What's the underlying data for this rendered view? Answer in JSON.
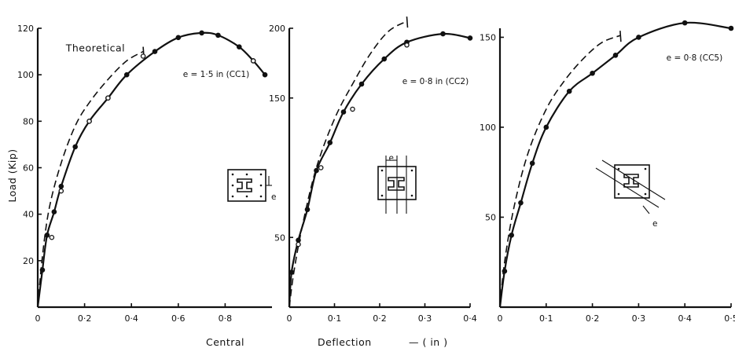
{
  "figure": {
    "x_caption": {
      "left": "Central",
      "middle": "Deflection",
      "right": "—  ( in )"
    }
  },
  "chart_data": [
    {
      "type": "line",
      "id": "CC1",
      "ylabel": "Load   (Kip)",
      "xlim": [
        0,
        1.0
      ],
      "ylim": [
        0,
        120
      ],
      "x_ticks": [
        0,
        0.2,
        0.4,
        0.6,
        0.8
      ],
      "x_tick_labels": [
        "0",
        "0·2",
        "0·4",
        "0·6",
        "0·8"
      ],
      "y_ticks": [
        20,
        40,
        60,
        80,
        100,
        120
      ],
      "y_tick_labels": [
        "20",
        "40",
        "60",
        "80",
        "100",
        "120"
      ],
      "annotations": [
        {
          "text": "Theoretical",
          "x": 0.12,
          "y": 110
        },
        {
          "text": "e = 1·5 in (CC1)",
          "x": 0.62,
          "y": 99
        }
      ],
      "series": [
        {
          "style": "dashed",
          "x": [
            0,
            0.02,
            0.05,
            0.1,
            0.16,
            0.22,
            0.3,
            0.38,
            0.45
          ],
          "y": [
            0,
            22,
            43,
            62,
            78,
            88,
            98,
            106,
            110
          ]
        },
        {
          "style": "solid",
          "markers": "filled",
          "x": [
            0,
            0.02,
            0.04,
            0.07,
            0.1,
            0.16,
            0.22,
            0.3,
            0.38,
            0.5,
            0.6,
            0.7,
            0.77,
            0.86,
            0.92,
            0.97
          ],
          "y": [
            0,
            16,
            31,
            41,
            52,
            69,
            80,
            90,
            100,
            110,
            116,
            118,
            117,
            112,
            106,
            100
          ]
        },
        {
          "style": "points",
          "markers": "open",
          "x": [
            0.06,
            0.1,
            0.22,
            0.3,
            0.45,
            0.92
          ],
          "y": [
            30,
            50,
            80,
            90,
            108,
            106
          ]
        }
      ]
    },
    {
      "type": "line",
      "id": "CC2",
      "xlim": [
        0,
        0.4
      ],
      "ylim": [
        0,
        200
      ],
      "x_ticks": [
        0,
        0.1,
        0.2,
        0.3,
        0.4
      ],
      "x_tick_labels": [
        "0",
        "0·1",
        "0·2",
        "0·3",
        "0·4"
      ],
      "y_ticks": [
        50,
        150,
        200
      ],
      "y_tick_labels": [
        "50",
        "150",
        "200"
      ],
      "annotations": [
        {
          "text": "e = 0·8 in (CC2)",
          "x": 0.25,
          "y": 160
        },
        {
          "text": "e",
          "x": 0.22,
          "y": 105
        }
      ],
      "series": [
        {
          "style": "dashed",
          "x": [
            0,
            0.01,
            0.03,
            0.06,
            0.1,
            0.14,
            0.18,
            0.22,
            0.26
          ],
          "y": [
            0,
            25,
            60,
            100,
            135,
            160,
            182,
            198,
            205
          ]
        },
        {
          "style": "solid",
          "markers": "filled",
          "x": [
            0,
            0.005,
            0.02,
            0.04,
            0.06,
            0.09,
            0.12,
            0.16,
            0.21,
            0.26,
            0.34,
            0.4
          ],
          "y": [
            0,
            25,
            48,
            70,
            98,
            118,
            140,
            160,
            178,
            190,
            196,
            193
          ]
        },
        {
          "style": "points",
          "markers": "open",
          "x": [
            0.02,
            0.07,
            0.14,
            0.26
          ],
          "y": [
            45,
            100,
            142,
            188
          ]
        }
      ]
    },
    {
      "type": "line",
      "id": "CC5",
      "xlim": [
        0,
        0.5
      ],
      "ylim": [
        0,
        155
      ],
      "x_ticks": [
        0,
        0.1,
        0.2,
        0.3,
        0.4,
        0.5
      ],
      "x_tick_labels": [
        "0",
        "0·1",
        "0·2",
        "0·3",
        "0·4",
        "0·5"
      ],
      "y_ticks": [
        50,
        100,
        150
      ],
      "y_tick_labels": [
        "50",
        "100",
        "150"
      ],
      "annotations": [
        {
          "text": "e = 0·8 (CC5)",
          "x": 0.36,
          "y": 137
        },
        {
          "text": "e",
          "x": 0.33,
          "y": 45
        }
      ],
      "series": [
        {
          "style": "dashed",
          "x": [
            0,
            0.01,
            0.03,
            0.06,
            0.1,
            0.14,
            0.18,
            0.22,
            0.26
          ],
          "y": [
            0,
            25,
            55,
            85,
            110,
            126,
            138,
            147,
            151
          ]
        },
        {
          "style": "solid",
          "markers": "filled",
          "x": [
            0,
            0.01,
            0.025,
            0.045,
            0.07,
            0.1,
            0.15,
            0.2,
            0.25,
            0.3,
            0.4,
            0.5
          ],
          "y": [
            0,
            20,
            40,
            58,
            80,
            100,
            120,
            130,
            140,
            150,
            158,
            155
          ]
        }
      ]
    }
  ]
}
